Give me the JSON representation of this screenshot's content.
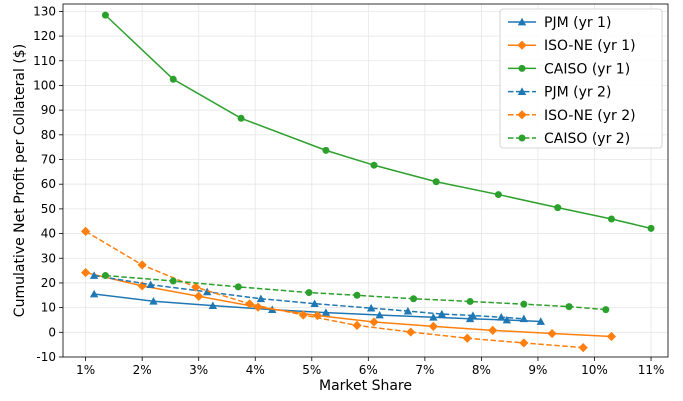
{
  "chart_data": {
    "type": "line",
    "title": "",
    "xlabel": "Market Share",
    "ylabel": "Cumulative Net Profit per Collateral ($)",
    "xlim": [
      0.6,
      11.3
    ],
    "ylim": [
      -10,
      133
    ],
    "x_ticks": [
      1,
      2,
      3,
      4,
      5,
      6,
      7,
      8,
      9,
      10,
      11
    ],
    "x_tick_labels": [
      "1%",
      "2%",
      "3%",
      "4%",
      "5%",
      "6%",
      "7%",
      "8%",
      "9%",
      "10%",
      "11%"
    ],
    "y_ticks": [
      -10,
      0,
      10,
      20,
      30,
      40,
      50,
      60,
      70,
      80,
      90,
      100,
      110,
      120,
      130
    ],
    "y_tick_labels": [
      "-10",
      "0",
      "10",
      "20",
      "30",
      "40",
      "50",
      "60",
      "70",
      "80",
      "90",
      "100",
      "110",
      "120",
      "130"
    ],
    "grid": true,
    "legend_position": "top-right",
    "series": [
      {
        "name": "PJM (yr 1)",
        "color": "#1f77b4",
        "marker": "triangle",
        "dash": "solid",
        "x": [
          1.15,
          2.2,
          3.25,
          4.3,
          5.25,
          6.2,
          7.15,
          7.8,
          8.45,
          9.05
        ],
        "y": [
          15.5,
          12.6,
          10.8,
          9.2,
          8.0,
          7.0,
          6.1,
          5.5,
          5.0,
          4.4
        ]
      },
      {
        "name": "ISO-NE (yr 1)",
        "color": "#ff7f0e",
        "marker": "diamond",
        "dash": "solid",
        "x": [
          1.0,
          2.0,
          3.0,
          4.05,
          5.1,
          6.1,
          7.15,
          8.2,
          9.25,
          10.3
        ],
        "y": [
          24.2,
          18.8,
          14.6,
          10.2,
          6.8,
          4.2,
          2.4,
          0.8,
          -0.5,
          -1.7
        ]
      },
      {
        "name": "CAISO (yr 1)",
        "color": "#2ca02c",
        "marker": "circle",
        "dash": "solid",
        "x": [
          1.35,
          2.55,
          3.75,
          5.25,
          6.1,
          7.2,
          8.3,
          9.35,
          10.3,
          11.0
        ],
        "y": [
          128.5,
          102.5,
          86.7,
          73.7,
          67.7,
          61.0,
          55.8,
          50.5,
          45.9,
          42.1
        ]
      },
      {
        "name": "PJM (yr 2)",
        "color": "#1f77b4",
        "marker": "triangle",
        "dash": "dashed",
        "x": [
          1.15,
          2.15,
          3.15,
          4.1,
          5.05,
          6.05,
          6.7,
          7.3,
          7.85,
          8.35,
          8.75
        ],
        "y": [
          23.0,
          19.3,
          16.4,
          13.6,
          11.6,
          9.8,
          8.6,
          7.4,
          6.8,
          6.1,
          5.5
        ]
      },
      {
        "name": "ISO-NE (yr 2)",
        "color": "#ff7f0e",
        "marker": "diamond",
        "dash": "dashed",
        "x": [
          1.0,
          2.0,
          2.95,
          3.9,
          4.85,
          5.8,
          6.75,
          7.75,
          8.75,
          9.8
        ],
        "y": [
          40.9,
          27.3,
          18.3,
          11.5,
          7.0,
          2.8,
          0.1,
          -2.4,
          -4.3,
          -6.2
        ]
      },
      {
        "name": "CAISO (yr 2)",
        "color": "#2ca02c",
        "marker": "circle",
        "dash": "dashed",
        "x": [
          1.35,
          2.55,
          3.7,
          4.95,
          5.8,
          6.8,
          7.8,
          8.75,
          9.55,
          10.2
        ],
        "y": [
          23.0,
          20.8,
          18.4,
          16.1,
          15.0,
          13.6,
          12.5,
          11.4,
          10.4,
          9.2
        ]
      }
    ]
  }
}
